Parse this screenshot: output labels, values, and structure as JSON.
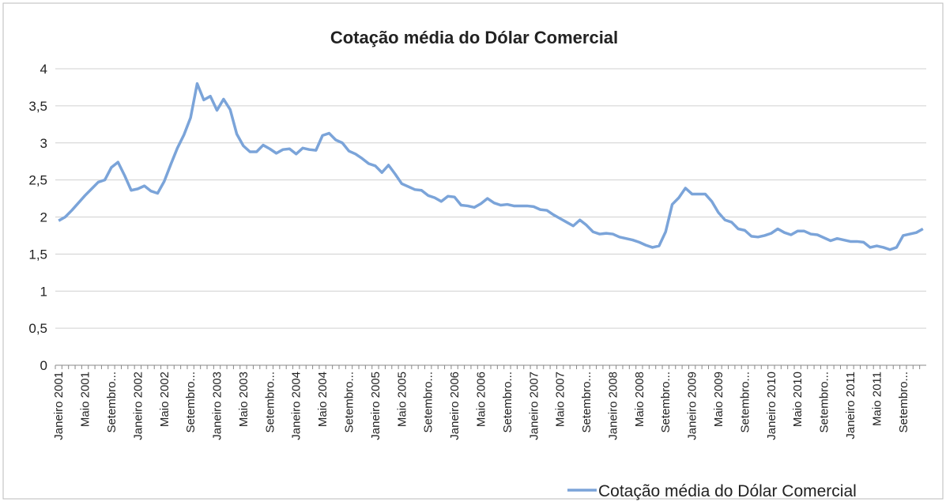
{
  "chart_data": {
    "type": "line",
    "title": "Cotação média do Dólar Comercial",
    "categories": [
      "Janeiro 2001",
      null,
      null,
      null,
      "Maio 2001",
      null,
      null,
      null,
      "Setembro...",
      null,
      null,
      null,
      "Janeiro 2002",
      null,
      null,
      null,
      "Maio 2002",
      null,
      null,
      null,
      "Setembro...",
      null,
      null,
      null,
      "Janeiro 2003",
      null,
      null,
      null,
      "Maio 2003",
      null,
      null,
      null,
      "Setembro...",
      null,
      null,
      null,
      "Janeiro 2004",
      null,
      null,
      null,
      "Maio 2004",
      null,
      null,
      null,
      "Setembro...",
      null,
      null,
      null,
      "Janeiro 2005",
      null,
      null,
      null,
      "Maio 2005",
      null,
      null,
      null,
      "Setembro...",
      null,
      null,
      null,
      "Janeiro 2006",
      null,
      null,
      null,
      "Maio 2006",
      null,
      null,
      null,
      "Setembro...",
      null,
      null,
      null,
      "Janeiro 2007",
      null,
      null,
      null,
      "Maio 2007",
      null,
      null,
      null,
      "Setembro...",
      null,
      null,
      null,
      "Janeiro 2008",
      null,
      null,
      null,
      "Maio 2008",
      null,
      null,
      null,
      "Setembro...",
      null,
      null,
      null,
      "Janeiro 2009",
      null,
      null,
      null,
      "Maio 2009",
      null,
      null,
      null,
      "Setembro...",
      null,
      null,
      null,
      "Janeiro 2010",
      null,
      null,
      null,
      "Maio 2010",
      null,
      null,
      null,
      "Setembro...",
      null,
      null,
      null,
      "Janeiro 2011",
      null,
      null,
      null,
      "Maio 2011",
      null,
      null,
      null,
      "Setembro...",
      null,
      null,
      null
    ],
    "series": [
      {
        "name": "Cotação média do Dólar Comercial",
        "color": "#7ba4d9",
        "values": [
          1.95,
          2.0,
          2.09,
          2.19,
          2.29,
          2.38,
          2.47,
          2.5,
          2.67,
          2.74,
          2.56,
          2.36,
          2.38,
          2.42,
          2.35,
          2.32,
          2.48,
          2.71,
          2.93,
          3.11,
          3.34,
          3.8,
          3.58,
          3.63,
          3.44,
          3.59,
          3.45,
          3.12,
          2.96,
          2.88,
          2.88,
          2.97,
          2.92,
          2.86,
          2.91,
          2.92,
          2.85,
          2.93,
          2.91,
          2.9,
          3.1,
          3.13,
          3.04,
          3.0,
          2.89,
          2.85,
          2.79,
          2.72,
          2.69,
          2.6,
          2.7,
          2.58,
          2.45,
          2.41,
          2.37,
          2.36,
          2.29,
          2.26,
          2.21,
          2.28,
          2.27,
          2.16,
          2.15,
          2.13,
          2.18,
          2.25,
          2.19,
          2.16,
          2.17,
          2.15,
          2.15,
          2.15,
          2.14,
          2.1,
          2.09,
          2.03,
          1.98,
          1.93,
          1.88,
          1.96,
          1.89,
          1.8,
          1.77,
          1.78,
          1.77,
          1.73,
          1.71,
          1.69,
          1.66,
          1.62,
          1.59,
          1.61,
          1.8,
          2.17,
          2.26,
          2.39,
          2.31,
          2.31,
          2.31,
          2.21,
          2.06,
          1.96,
          1.93,
          1.84,
          1.82,
          1.74,
          1.73,
          1.75,
          1.78,
          1.84,
          1.79,
          1.76,
          1.81,
          1.81,
          1.77,
          1.76,
          1.72,
          1.68,
          1.71,
          1.69,
          1.67,
          1.67,
          1.66,
          1.59,
          1.61,
          1.59,
          1.56,
          1.59,
          1.75,
          1.77,
          1.79,
          1.84
        ]
      }
    ],
    "ylim": [
      0,
      4
    ],
    "yticks": [
      0,
      {
        "value": 0.5,
        "label": "0,5"
      },
      1,
      {
        "value": 1.5,
        "label": "1,5"
      },
      2,
      {
        "value": 2.5,
        "label": "2,5"
      },
      3,
      {
        "value": 3.5,
        "label": "3,5"
      },
      4
    ],
    "grid": true,
    "legend": "bottom-right"
  }
}
